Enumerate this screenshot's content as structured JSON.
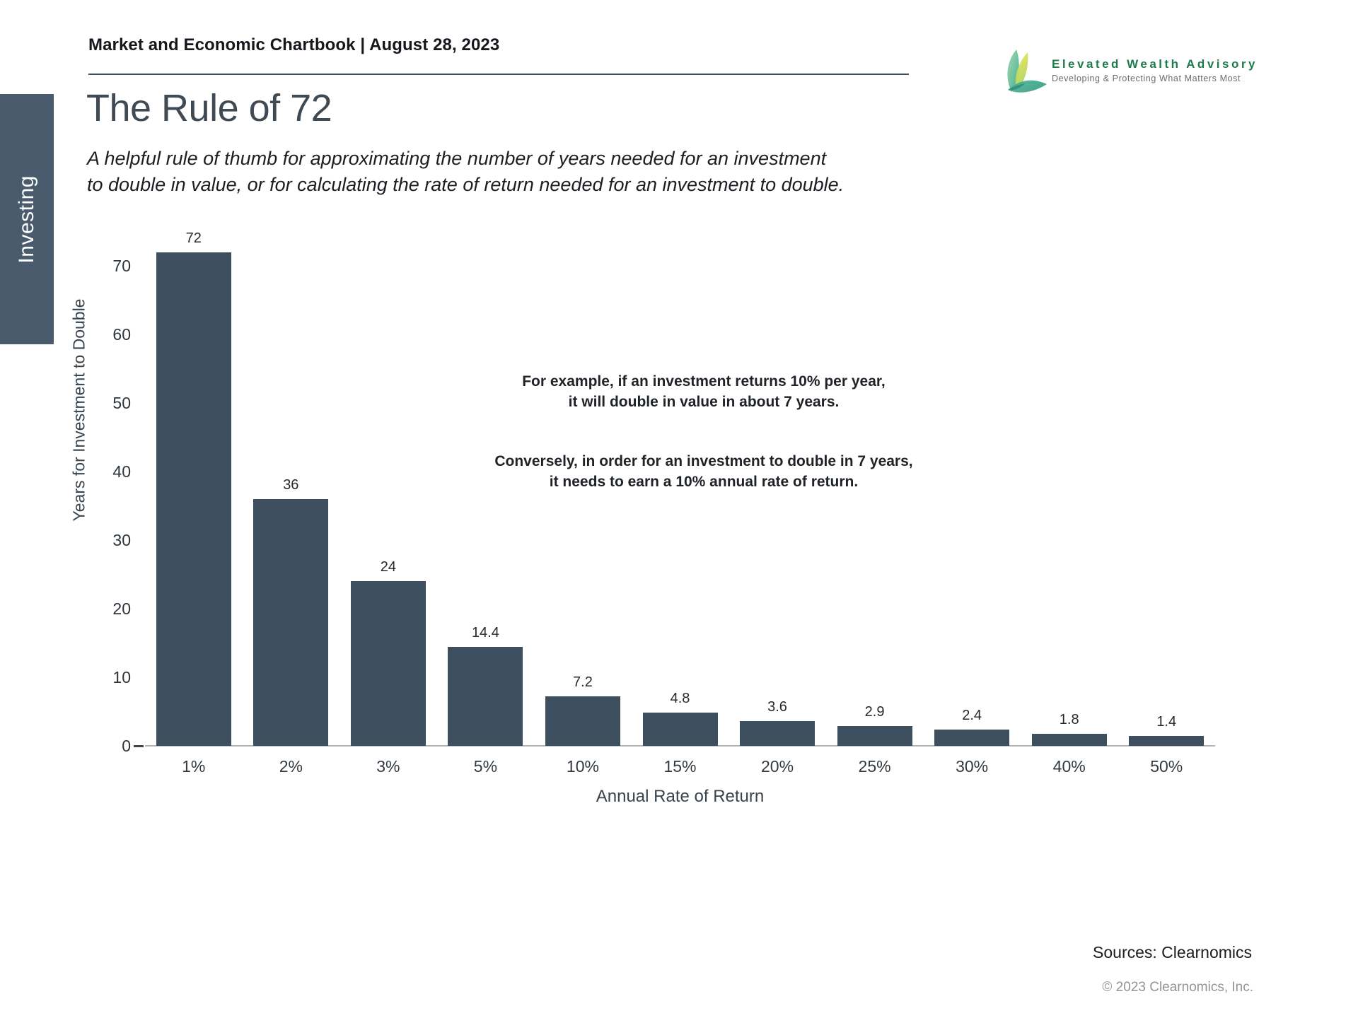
{
  "header": {
    "title": "Market and Economic Chartbook | August 28, 2023"
  },
  "logo": {
    "name": "Elevated Wealth Advisory",
    "tagline": "Developing & Protecting What Matters Most",
    "name_color": "#1e7b4c"
  },
  "sidebar": {
    "tab_label": "Investing"
  },
  "page": {
    "title": "The Rule of 72",
    "subtitle": "A helpful rule of thumb for approximating the number of years needed for an investment\nto double in value, or for calculating the rate of return needed for an investment to double."
  },
  "annotation": {
    "para1": "For example, if an investment returns 10% per year,\nit will double in value in about 7 years.",
    "para2": "Conversely, in order for an investment to double in 7 years,\nit needs to earn a 10% annual rate of return."
  },
  "chart_data": {
    "type": "bar",
    "title": "The Rule of 72",
    "categories": [
      "1%",
      "2%",
      "3%",
      "5%",
      "10%",
      "15%",
      "20%",
      "25%",
      "30%",
      "40%",
      "50%"
    ],
    "values": [
      72,
      36,
      24,
      14.4,
      7.2,
      4.8,
      3.6,
      2.9,
      2.4,
      1.8,
      1.4
    ],
    "xlabel": "Annual Rate of Return",
    "ylabel": "Years for Investment to Double",
    "ylim": [
      0,
      72
    ],
    "yticks": [
      0,
      10,
      20,
      30,
      40,
      50,
      60,
      70
    ],
    "bar_color": "#3d4e5f",
    "grid": false,
    "legend_position": "none",
    "value_labels": true
  },
  "footer": {
    "sources": "Sources: Clearnomics",
    "copyright": "© 2023 Clearnomics, Inc."
  }
}
